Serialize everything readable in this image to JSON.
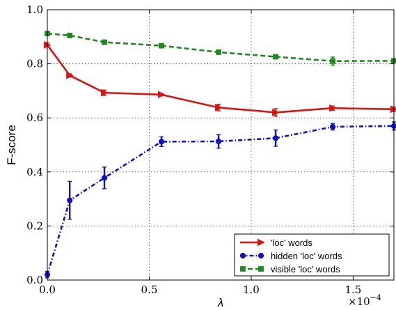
{
  "chart_data": {
    "type": "line",
    "xlabel": "λ",
    "ylabel": "F-score",
    "x_multiplier_label": "×10",
    "x_multiplier_exp": "−4",
    "xlim": [
      0.0,
      1.7
    ],
    "ylim": [
      0.0,
      1.0
    ],
    "xticks": [
      0.0,
      0.5,
      1.0,
      1.5
    ],
    "yticks": [
      0.0,
      0.2,
      0.4,
      0.6,
      0.8,
      1.0
    ],
    "xtick_labels": [
      "0.0",
      "0.5",
      "1.0",
      "1.5"
    ],
    "ytick_labels": [
      "0.0",
      "0.2",
      "0.4",
      "0.6",
      "0.8",
      "1.0"
    ],
    "grid": true,
    "legend_position": "lower-right",
    "series": [
      {
        "name": "'loc' words",
        "color": "#e01010",
        "linestyle": "solid",
        "marker": "triangle-right",
        "x": [
          0.0,
          0.11,
          0.28,
          0.56,
          0.84,
          1.12,
          1.4,
          1.7
        ],
        "y": [
          0.87,
          0.757,
          0.693,
          0.686,
          0.638,
          0.62,
          0.636,
          0.632
        ],
        "err": [
          0.008,
          0.006,
          0.01,
          0.004,
          0.012,
          0.014,
          0.008,
          0.008
        ]
      },
      {
        "name": "hidden 'loc' words",
        "color": "#1010cc",
        "linestyle": "dashdot",
        "marker": "circle",
        "x": [
          0.0,
          0.11,
          0.28,
          0.56,
          0.84,
          1.12,
          1.4,
          1.7
        ],
        "y": [
          0.02,
          0.295,
          0.378,
          0.512,
          0.513,
          0.525,
          0.567,
          0.57
        ],
        "err": [
          0.012,
          0.07,
          0.04,
          0.018,
          0.025,
          0.03,
          0.012,
          0.015
        ]
      },
      {
        "name": "visible 'loc' words",
        "color": "#208820",
        "linestyle": "dashed",
        "marker": "square",
        "x": [
          0.0,
          0.11,
          0.28,
          0.56,
          0.84,
          1.12,
          1.4,
          1.7
        ],
        "y": [
          0.912,
          0.905,
          0.88,
          0.867,
          0.843,
          0.826,
          0.81,
          0.811
        ],
        "err": [
          0.005,
          0.005,
          0.008,
          0.005,
          0.005,
          0.005,
          0.015,
          0.006
        ]
      }
    ]
  }
}
